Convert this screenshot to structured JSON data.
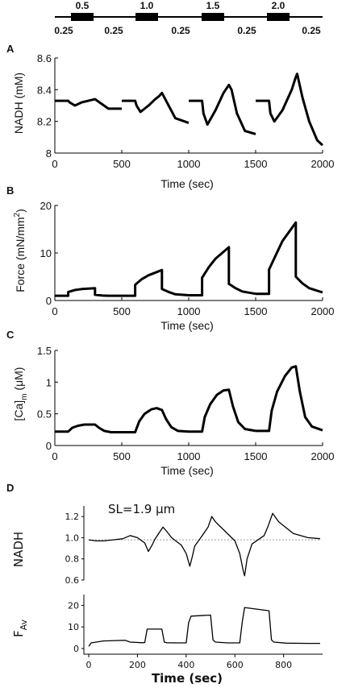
{
  "protocol_bar": {
    "pulse_labels": [
      "0.5",
      "1.0",
      "1.5",
      "2.0"
    ],
    "rest_labels": [
      "0.25",
      "0.25",
      "0.25",
      "0.25",
      "0.25"
    ]
  },
  "chart_data": [
    {
      "panel": "A",
      "type": "line",
      "xlabel": "Time (sec)",
      "ylabel": "NADH (mM)",
      "xlim": [
        0,
        2000
      ],
      "ylim": [
        8,
        8.6
      ],
      "xticks": [
        "0",
        "500",
        "1000",
        "1500",
        "2000"
      ],
      "yticks": [
        "8",
        "8.2",
        "8.4",
        "8.6"
      ],
      "series": [
        {
          "x": [
            0,
            100,
            110,
            150,
            200,
            250,
            300,
            350,
            400,
            500
          ],
          "y": [
            8.33,
            8.33,
            8.32,
            8.3,
            8.32,
            8.33,
            8.34,
            8.31,
            8.28,
            8.28
          ]
        },
        {
          "x": [
            500,
            600,
            610,
            640,
            700,
            750,
            780,
            800,
            850,
            900,
            1000
          ],
          "y": [
            8.33,
            8.33,
            8.3,
            8.26,
            8.3,
            8.34,
            8.36,
            8.38,
            8.3,
            8.22,
            8.19
          ]
        },
        {
          "x": [
            1000,
            1100,
            1110,
            1140,
            1200,
            1260,
            1300,
            1320,
            1360,
            1420,
            1500
          ],
          "y": [
            8.33,
            8.33,
            8.25,
            8.18,
            8.27,
            8.38,
            8.43,
            8.4,
            8.25,
            8.14,
            8.12
          ]
        },
        {
          "x": [
            1500,
            1600,
            1610,
            1640,
            1700,
            1770,
            1800,
            1810,
            1850,
            1900,
            1960,
            2000
          ],
          "y": [
            8.33,
            8.33,
            8.25,
            8.2,
            8.27,
            8.4,
            8.48,
            8.5,
            8.35,
            8.2,
            8.08,
            8.05
          ]
        }
      ]
    },
    {
      "panel": "B",
      "type": "line",
      "xlabel": "Time (sec)",
      "ylabel": "Force (mN/mm",
      "ylabel_sup": "2",
      "ylabel_close": ")",
      "xlim": [
        0,
        2000
      ],
      "ylim": [
        0,
        20
      ],
      "xticks": [
        "0",
        "500",
        "1000",
        "1500",
        "2000"
      ],
      "yticks": [
        "0",
        "10",
        "20"
      ],
      "series": [
        {
          "x": [
            0,
            100,
            100,
            150,
            200,
            300,
            300,
            350,
            400,
            500
          ],
          "y": [
            1.0,
            1.0,
            1.8,
            2.2,
            2.4,
            2.6,
            1.2,
            1.05,
            1.0,
            1.0
          ]
        },
        {
          "x": [
            500,
            600,
            600,
            650,
            700,
            800,
            800,
            850,
            900,
            1000
          ],
          "y": [
            1.0,
            1.0,
            3.3,
            4.5,
            5.3,
            6.4,
            2.4,
            1.8,
            1.3,
            1.1
          ]
        },
        {
          "x": [
            1000,
            1100,
            1100,
            1150,
            1200,
            1300,
            1300,
            1350,
            1400,
            1500
          ],
          "y": [
            1.1,
            1.1,
            4.8,
            7.0,
            8.8,
            11.2,
            3.5,
            2.6,
            1.9,
            1.4
          ]
        },
        {
          "x": [
            1500,
            1600,
            1600,
            1650,
            1700,
            1800,
            1800,
            1850,
            1900,
            2000
          ],
          "y": [
            1.4,
            1.4,
            6.5,
            9.5,
            12.5,
            16.4,
            5.0,
            3.6,
            2.6,
            1.7
          ]
        }
      ]
    },
    {
      "panel": "C",
      "type": "line",
      "xlabel": "Time (sec)",
      "ylabel": "[Ca]",
      "ylabel_sub": "m",
      "ylabel_unit": " (μM)",
      "xlim": [
        0,
        2000
      ],
      "ylim": [
        0,
        1.5
      ],
      "xticks": [
        "0",
        "500",
        "1000",
        "1500",
        "2000"
      ],
      "yticks": [
        "0",
        "0.5",
        "1",
        "1.5"
      ],
      "series": [
        {
          "x": [
            0,
            100,
            130,
            170,
            220,
            260,
            300,
            330,
            370,
            420,
            500
          ],
          "y": [
            0.22,
            0.22,
            0.28,
            0.31,
            0.33,
            0.33,
            0.33,
            0.28,
            0.23,
            0.21,
            0.21
          ]
        },
        {
          "x": [
            500,
            600,
            630,
            670,
            720,
            760,
            800,
            830,
            870,
            920,
            1000
          ],
          "y": [
            0.21,
            0.21,
            0.38,
            0.5,
            0.57,
            0.59,
            0.56,
            0.42,
            0.29,
            0.23,
            0.22
          ]
        },
        {
          "x": [
            1000,
            1100,
            1120,
            1160,
            1210,
            1260,
            1300,
            1330,
            1370,
            1420,
            1500
          ],
          "y": [
            0.22,
            0.22,
            0.45,
            0.65,
            0.8,
            0.87,
            0.88,
            0.62,
            0.37,
            0.26,
            0.23
          ]
        },
        {
          "x": [
            1500,
            1600,
            1620,
            1660,
            1720,
            1770,
            1800,
            1830,
            1870,
            1920,
            2000
          ],
          "y": [
            0.23,
            0.23,
            0.55,
            0.85,
            1.1,
            1.23,
            1.25,
            0.85,
            0.45,
            0.3,
            0.24
          ]
        }
      ]
    },
    {
      "panel": "D",
      "type": "line",
      "annotation": "SL=1.9 μm",
      "xlabel": "Time (sec)",
      "xlim": [
        -20,
        960
      ],
      "xticks": [
        "0",
        "200",
        "400",
        "600",
        "800"
      ],
      "nadh": {
        "ylabel": "NADH",
        "ylim": [
          0.6,
          1.3
        ],
        "yticks": [
          "0.6",
          "0.8",
          "1.0",
          "1.2"
        ],
        "baseline": 0.98,
        "x": [
          0,
          30,
          60,
          100,
          140,
          170,
          200,
          230,
          245,
          260,
          270,
          290,
          305,
          320,
          340,
          380,
          400,
          415,
          425,
          435,
          460,
          490,
          505,
          520,
          560,
          600,
          620,
          635,
          640,
          650,
          670,
          720,
          735,
          755,
          780,
          840,
          900,
          950
        ],
        "y": [
          0.98,
          0.97,
          0.97,
          0.98,
          0.99,
          1.02,
          1.0,
          0.95,
          0.87,
          0.93,
          0.98,
          1.05,
          1.1,
          1.06,
          1.0,
          0.93,
          0.85,
          0.73,
          0.82,
          0.92,
          1.0,
          1.1,
          1.2,
          1.15,
          1.06,
          0.97,
          0.85,
          0.68,
          0.64,
          0.8,
          0.94,
          1.02,
          1.1,
          1.23,
          1.15,
          1.04,
          1.0,
          0.99
        ]
      },
      "force": {
        "ylabel": "F",
        "ylabel_sub": "Av",
        "ylim": [
          0,
          25
        ],
        "yticks": [
          "0",
          "10",
          "20"
        ],
        "x": [
          0,
          10,
          60,
          110,
          150,
          170,
          220,
          230,
          240,
          300,
          310,
          320,
          370,
          400,
          410,
          420,
          500,
          510,
          520,
          570,
          620,
          630,
          640,
          740,
          750,
          760,
          810,
          900,
          950
        ],
        "y": [
          1.0,
          2.6,
          3.5,
          3.7,
          3.8,
          3.0,
          2.7,
          2.8,
          9.0,
          9.0,
          3.0,
          2.7,
          2.6,
          2.6,
          12.0,
          15.0,
          15.5,
          4.0,
          3.0,
          2.6,
          2.6,
          12.0,
          19.0,
          17.5,
          4.0,
          3.0,
          2.5,
          2.4,
          2.4
        ]
      }
    }
  ]
}
